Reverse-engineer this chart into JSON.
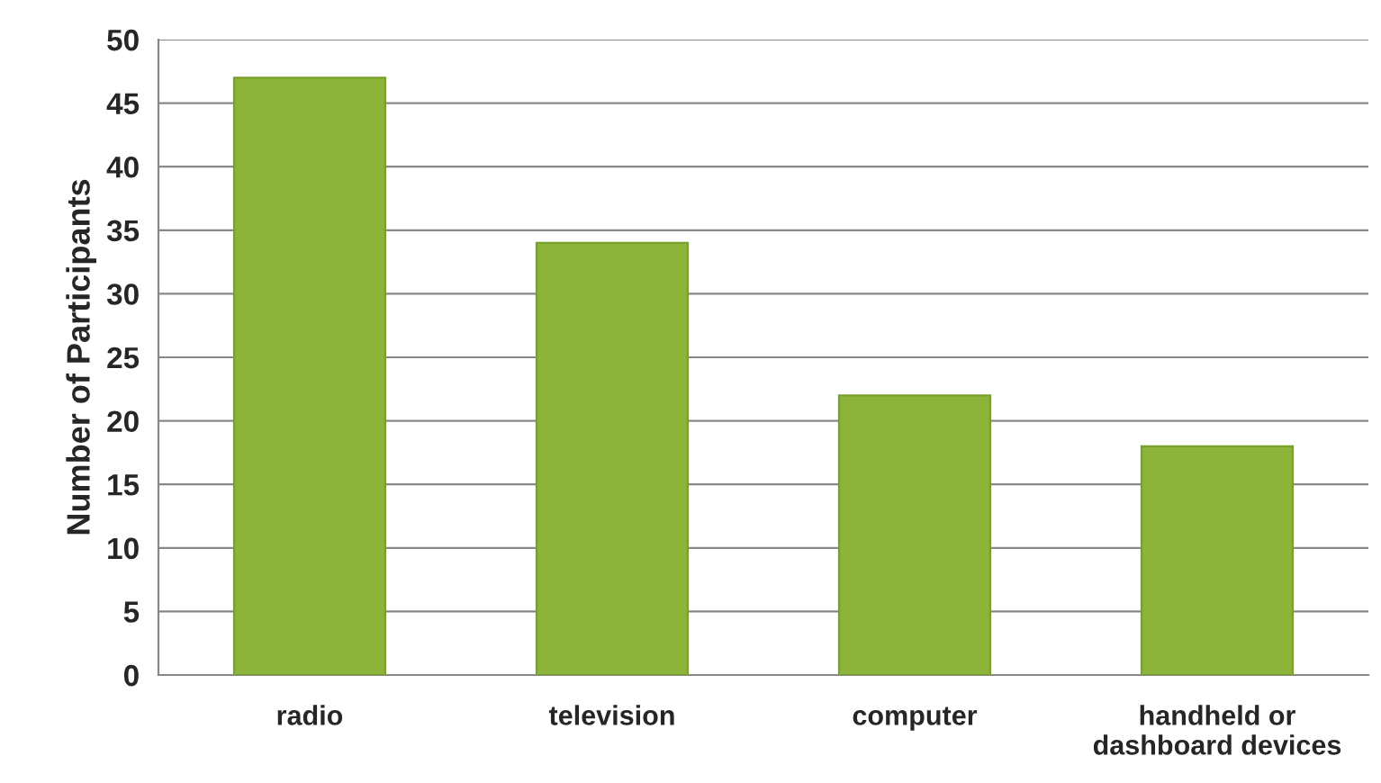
{
  "chart_data": {
    "type": "bar",
    "ylabel": "Number of Participants",
    "categories": [
      "radio",
      "television",
      "computer",
      "handheld or\ndashboard devices"
    ],
    "values": [
      47,
      34,
      22,
      18
    ],
    "color": "#8db43a",
    "ylim": [
      0,
      50
    ],
    "yticks": [
      0,
      5,
      10,
      15,
      20,
      25,
      30,
      35,
      40,
      45,
      50
    ],
    "grid": "y"
  }
}
